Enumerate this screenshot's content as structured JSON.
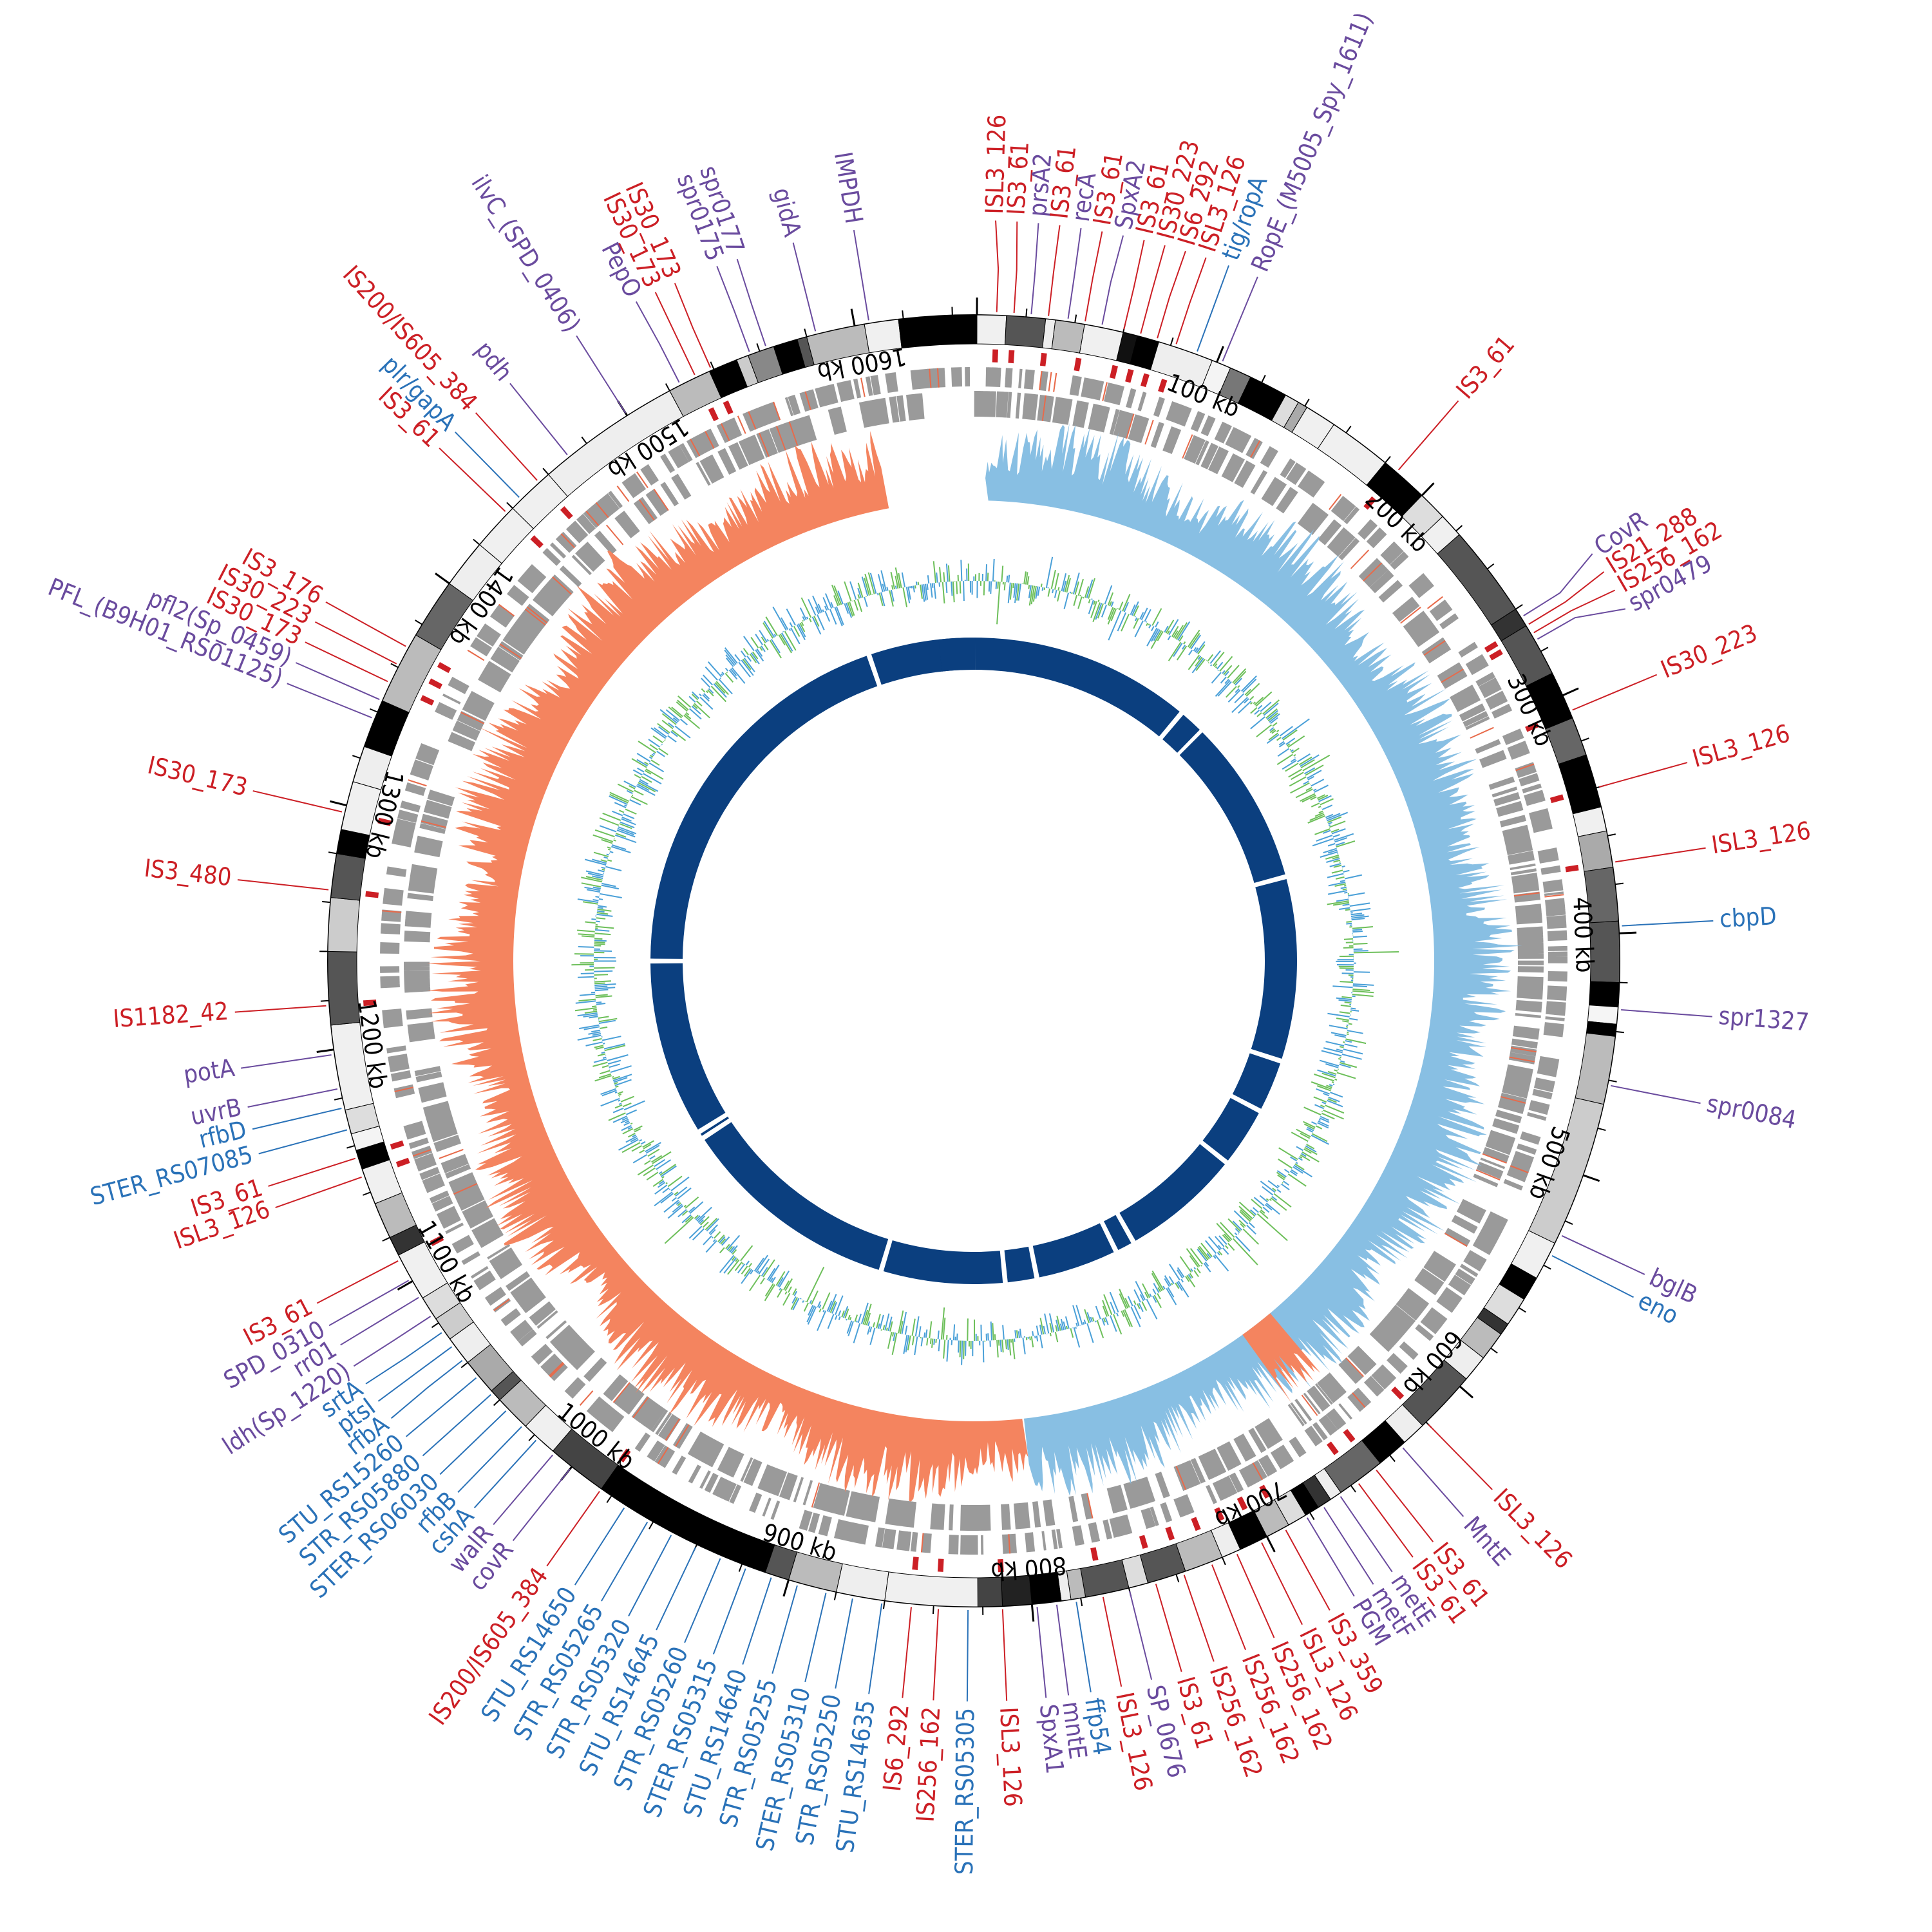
{
  "genome": {
    "size_kb": 1650,
    "scale_labels": [
      "100 kb",
      "200 kb",
      "300 kb",
      "400 kb",
      "500 kb",
      "600 kb",
      "700 kb",
      "800 kb",
      "900 kb",
      "1000 kb",
      "1100 kb",
      "1200 kb",
      "1300 kb",
      "1400 kb",
      "1500 kb",
      "1600 kb"
    ],
    "colors": {
      "is_element": "#cc1f25",
      "purple_gene": "#6a4b9e",
      "blue_gene": "#2a72b8",
      "gc_skew_positive": "#88bfe3",
      "gc_skew_negative": "#f4845f",
      "gc_content_blue": "#4aa0d8",
      "gc_content_green": "#6dbf5a",
      "inner_ring": "#0b3f7f",
      "cds_gray": "#9a9a9a"
    }
  },
  "labels": [
    {
      "text": "IS3_61",
      "pos": 186,
      "color": "red"
    },
    {
      "text": "CovR",
      "pos": 264,
      "color": "purple"
    },
    {
      "text": "IS21_288",
      "pos": 268,
      "color": "red"
    },
    {
      "text": "IS256_162",
      "pos": 272,
      "color": "red"
    },
    {
      "text": "spr0479",
      "pos": 275,
      "color": "purple"
    },
    {
      "text": "IS30_223",
      "pos": 307,
      "color": "red"
    },
    {
      "text": "ISL3_126",
      "pos": 340,
      "color": "red"
    },
    {
      "text": "ISL3_126",
      "pos": 371,
      "color": "red"
    },
    {
      "text": "cbpD",
      "pos": 397,
      "color": "blue"
    },
    {
      "text": "spr1327",
      "pos": 431,
      "color": "purple"
    },
    {
      "text": "spr0084",
      "pos": 462,
      "color": "purple"
    },
    {
      "text": "bglB",
      "pos": 526,
      "color": "purple"
    },
    {
      "text": "eno",
      "pos": 535,
      "color": "blue"
    },
    {
      "text": "ISL3_126",
      "pos": 620,
      "color": "red"
    },
    {
      "text": "MntE",
      "pos": 634,
      "color": "purple"
    },
    {
      "text": "IS3_61",
      "pos": 648,
      "color": "red"
    },
    {
      "text": "IS3_61",
      "pos": 657,
      "color": "red"
    },
    {
      "text": "metE",
      "pos": 666,
      "color": "purple"
    },
    {
      "text": "metF",
      "pos": 674,
      "color": "purple"
    },
    {
      "text": "PGM",
      "pos": 682,
      "color": "purple"
    },
    {
      "text": "IS3_359",
      "pos": 692,
      "color": "red"
    },
    {
      "text": "ISL3_126",
      "pos": 703,
      "color": "red"
    },
    {
      "text": "IS256_162",
      "pos": 714,
      "color": "red"
    },
    {
      "text": "IS256_162",
      "pos": 725,
      "color": "red"
    },
    {
      "text": "IS256_162",
      "pos": 737,
      "color": "red"
    },
    {
      "text": "IS3_61",
      "pos": 749,
      "color": "red"
    },
    {
      "text": "SP_0676",
      "pos": 760,
      "color": "purple"
    },
    {
      "text": "ISL3_126",
      "pos": 771,
      "color": "red"
    },
    {
      "text": "ffp54",
      "pos": 782,
      "color": "blue"
    },
    {
      "text": "mntE",
      "pos": 790,
      "color": "purple"
    },
    {
      "text": "SpxA1",
      "pos": 798,
      "color": "purple"
    },
    {
      "text": "ISL3_126",
      "pos": 812,
      "color": "red"
    },
    {
      "text": "STER_RS05305",
      "pos": 826,
      "color": "blue"
    },
    {
      "text": "IS256_162",
      "pos": 838,
      "color": "red"
    },
    {
      "text": "IS6_292",
      "pos": 849,
      "color": "red"
    },
    {
      "text": "STU_RS14635",
      "pos": 861,
      "color": "blue"
    },
    {
      "text": "STR_RS05250",
      "pos": 873,
      "color": "blue"
    },
    {
      "text": "STER_RS05310",
      "pos": 884,
      "color": "blue"
    },
    {
      "text": "STR_RS05255",
      "pos": 896,
      "color": "blue"
    },
    {
      "text": "STU_RS14640",
      "pos": 907,
      "color": "blue"
    },
    {
      "text": "STER_RS05315",
      "pos": 918,
      "color": "blue"
    },
    {
      "text": "STR_RS05260",
      "pos": 929,
      "color": "blue"
    },
    {
      "text": "STU_RS14645",
      "pos": 940,
      "color": "blue"
    },
    {
      "text": "STR_RS05320",
      "pos": 951,
      "color": "blue"
    },
    {
      "text": "STR_RS05265",
      "pos": 962,
      "color": "blue"
    },
    {
      "text": "STU_RS14650",
      "pos": 973,
      "color": "blue"
    },
    {
      "text": "IS200/IS605_384",
      "pos": 985,
      "color": "red"
    },
    {
      "text": "covR",
      "pos": 1000,
      "color": "purple"
    },
    {
      "text": "walR",
      "pos": 1009,
      "color": "purple"
    },
    {
      "text": "cshA",
      "pos": 1018,
      "color": "blue"
    },
    {
      "text": "rfbB",
      "pos": 1026,
      "color": "blue"
    },
    {
      "text": "STER_RS06030",
      "pos": 1035,
      "color": "blue"
    },
    {
      "text": "STR_RS05880",
      "pos": 1044,
      "color": "blue"
    },
    {
      "text": "STU_RS15260",
      "pos": 1053,
      "color": "blue"
    },
    {
      "text": "rfbA",
      "pos": 1062,
      "color": "blue"
    },
    {
      "text": "ptsI",
      "pos": 1069,
      "color": "blue"
    },
    {
      "text": "srtA",
      "pos": 1076,
      "color": "blue"
    },
    {
      "text": "ldh(Sp_1220)",
      "pos": 1084,
      "color": "purple"
    },
    {
      "text": "rr01",
      "pos": 1093,
      "color": "purple"
    },
    {
      "text": "SPD_0310",
      "pos": 1101,
      "color": "purple"
    },
    {
      "text": "IS3_61",
      "pos": 1110,
      "color": "red"
    },
    {
      "text": "ISL3_126",
      "pos": 1147,
      "color": "red"
    },
    {
      "text": "IS3_61",
      "pos": 1155,
      "color": "red"
    },
    {
      "text": "STER_RS07085",
      "pos": 1167,
      "color": "blue"
    },
    {
      "text": "rfbD",
      "pos": 1176,
      "color": "blue"
    },
    {
      "text": "uvrB",
      "pos": 1184,
      "color": "purple"
    },
    {
      "text": "potA",
      "pos": 1198,
      "color": "purple"
    },
    {
      "text": "IS1182_42",
      "pos": 1218,
      "color": "red"
    },
    {
      "text": "IS3_480",
      "pos": 1265,
      "color": "red"
    },
    {
      "text": "IS30_173",
      "pos": 1297,
      "color": "red"
    },
    {
      "text": "PFL_(B9H01_RS01125)",
      "pos": 1337,
      "color": "purple"
    },
    {
      "text": "pfl2(Sp_0459)",
      "pos": 1345,
      "color": "purple"
    },
    {
      "text": "IS30_173",
      "pos": 1353,
      "color": "red"
    },
    {
      "text": "IS30_223",
      "pos": 1361,
      "color": "red"
    },
    {
      "text": "IS3_176",
      "pos": 1369,
      "color": "red"
    },
    {
      "text": "IS3_61",
      "pos": 1437,
      "color": "red"
    },
    {
      "text": "plr/gapA",
      "pos": 1445,
      "color": "blue"
    },
    {
      "text": "IS200/IS605_384",
      "pos": 1455,
      "color": "red"
    },
    {
      "text": "pdh",
      "pos": 1471,
      "color": "purple"
    },
    {
      "text": "ilvC_(SPD_0406)",
      "pos": 1500,
      "color": "purple"
    },
    {
      "text": "PepO",
      "pos": 1525,
      "color": "purple"
    },
    {
      "text": "IS30_173",
      "pos": 1532,
      "color": "red"
    },
    {
      "text": "IS30_173",
      "pos": 1539,
      "color": "red"
    },
    {
      "text": "spr0175",
      "pos": 1556,
      "color": "purple"
    },
    {
      "text": "spr0177",
      "pos": 1563,
      "color": "purple"
    },
    {
      "text": "gidA",
      "pos": 1584,
      "color": "purple"
    },
    {
      "text": "IMPDH",
      "pos": 1606,
      "color": "purple"
    },
    {
      "text": "ISL3_126",
      "pos": 8,
      "color": "red"
    },
    {
      "text": "IS3_61",
      "pos": 15,
      "color": "red"
    },
    {
      "text": "prsA2",
      "pos": 22,
      "color": "purple"
    },
    {
      "text": "IS3_61",
      "pos": 29,
      "color": "red"
    },
    {
      "text": "recA",
      "pos": 37,
      "color": "purple"
    },
    {
      "text": "IS3_61",
      "pos": 44,
      "color": "red"
    },
    {
      "text": "SpxA2",
      "pos": 51,
      "color": "purple"
    },
    {
      "text": "IS3_61",
      "pos": 60,
      "color": "red"
    },
    {
      "text": "IS30_223",
      "pos": 67,
      "color": "red"
    },
    {
      "text": "IS6_292",
      "pos": 74,
      "color": "red"
    },
    {
      "text": "ISL3_126",
      "pos": 82,
      "color": "red"
    },
    {
      "text": "tig/ropA",
      "pos": 91,
      "color": "blue"
    },
    {
      "text": "RopE_(M5005_Spy_1611)",
      "pos": 102,
      "color": "purple"
    }
  ]
}
